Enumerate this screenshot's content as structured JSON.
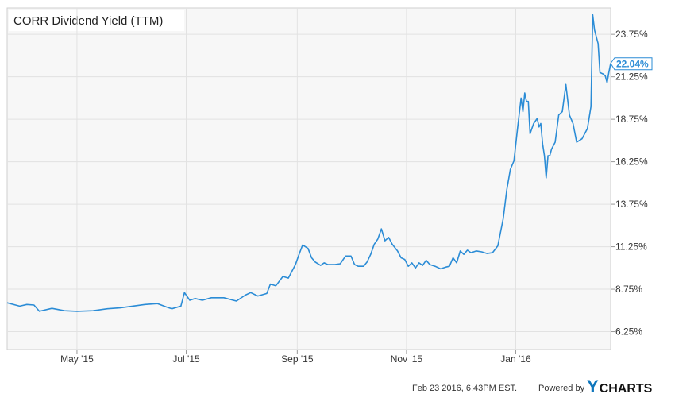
{
  "colors": {
    "line": "#2b8cd6",
    "plot_bg": "#f7f7f7",
    "grid": "#e2e2e2",
    "brand_y": "#0e76bc",
    "brand_text": "#111111"
  },
  "footer": {
    "timestamp": "Feb 23 2016, 6:43PM EST.",
    "powered_by": "Powered by",
    "brand_y": "Y",
    "brand_rest": "CHARTS"
  },
  "chart_data": {
    "type": "line",
    "title": "CORR Dividend Yield (TTM)",
    "xlabel": "",
    "ylabel": "",
    "x_start": "2015-03-23",
    "x_end": "2016-02-23",
    "ylim": [
      5.2,
      25.3
    ],
    "y_ticks": [
      6.25,
      8.75,
      11.25,
      13.75,
      16.25,
      18.75,
      21.25,
      23.75
    ],
    "y_tick_labels": [
      "6.25%",
      "8.75%",
      "11.25%",
      "13.75%",
      "16.25%",
      "18.75%",
      "21.25%",
      "23.75%"
    ],
    "x_ticks": [
      {
        "label": "May '15",
        "date": "2015-05-01"
      },
      {
        "label": "Jul '15",
        "date": "2015-07-01"
      },
      {
        "label": "Sep '15",
        "date": "2015-09-01"
      },
      {
        "label": "Nov '15",
        "date": "2015-11-01"
      },
      {
        "label": "Jan '16",
        "date": "2016-01-01"
      }
    ],
    "grid": true,
    "last_value_label": "22.04%",
    "series": [
      {
        "points": [
          [
            "2015-03-23",
            7.95
          ],
          [
            "2015-03-30",
            7.75
          ],
          [
            "2015-04-03",
            7.85
          ],
          [
            "2015-04-07",
            7.82
          ],
          [
            "2015-04-10",
            7.45
          ],
          [
            "2015-04-17",
            7.62
          ],
          [
            "2015-04-24",
            7.48
          ],
          [
            "2015-05-01",
            7.45
          ],
          [
            "2015-05-10",
            7.48
          ],
          [
            "2015-05-18",
            7.6
          ],
          [
            "2015-05-25",
            7.65
          ],
          [
            "2015-06-01",
            7.75
          ],
          [
            "2015-06-08",
            7.85
          ],
          [
            "2015-06-15",
            7.9
          ],
          [
            "2015-06-20",
            7.7
          ],
          [
            "2015-06-23",
            7.6
          ],
          [
            "2015-06-28",
            7.75
          ],
          [
            "2015-06-30",
            8.55
          ],
          [
            "2015-07-03",
            8.1
          ],
          [
            "2015-07-06",
            8.2
          ],
          [
            "2015-07-10",
            8.1
          ],
          [
            "2015-07-15",
            8.25
          ],
          [
            "2015-07-22",
            8.25
          ],
          [
            "2015-07-29",
            8.05
          ],
          [
            "2015-08-03",
            8.4
          ],
          [
            "2015-08-06",
            8.55
          ],
          [
            "2015-08-10",
            8.35
          ],
          [
            "2015-08-15",
            8.5
          ],
          [
            "2015-08-17",
            9.05
          ],
          [
            "2015-08-20",
            8.95
          ],
          [
            "2015-08-24",
            9.5
          ],
          [
            "2015-08-27",
            9.4
          ],
          [
            "2015-08-31",
            10.2
          ],
          [
            "2015-09-02",
            10.8
          ],
          [
            "2015-09-04",
            11.35
          ],
          [
            "2015-09-07",
            11.15
          ],
          [
            "2015-09-09",
            10.6
          ],
          [
            "2015-09-11",
            10.35
          ],
          [
            "2015-09-14",
            10.15
          ],
          [
            "2015-09-16",
            10.3
          ],
          [
            "2015-09-18",
            10.2
          ],
          [
            "2015-09-22",
            10.2
          ],
          [
            "2015-09-25",
            10.25
          ],
          [
            "2015-09-28",
            10.7
          ],
          [
            "2015-10-01",
            10.7
          ],
          [
            "2015-10-03",
            10.2
          ],
          [
            "2015-10-05",
            10.1
          ],
          [
            "2015-10-08",
            10.1
          ],
          [
            "2015-10-10",
            10.35
          ],
          [
            "2015-10-12",
            10.8
          ],
          [
            "2015-10-14",
            11.4
          ],
          [
            "2015-10-16",
            11.7
          ],
          [
            "2015-10-18",
            12.3
          ],
          [
            "2015-10-20",
            11.6
          ],
          [
            "2015-10-22",
            11.8
          ],
          [
            "2015-10-24",
            11.4
          ],
          [
            "2015-10-27",
            11.0
          ],
          [
            "2015-10-29",
            10.6
          ],
          [
            "2015-10-31",
            10.5
          ],
          [
            "2015-11-02",
            10.1
          ],
          [
            "2015-11-04",
            10.3
          ],
          [
            "2015-11-06",
            10.0
          ],
          [
            "2015-11-08",
            10.3
          ],
          [
            "2015-11-10",
            10.15
          ],
          [
            "2015-11-12",
            10.45
          ],
          [
            "2015-11-14",
            10.2
          ],
          [
            "2015-11-17",
            10.1
          ],
          [
            "2015-11-20",
            9.95
          ],
          [
            "2015-11-23",
            10.05
          ],
          [
            "2015-11-25",
            10.1
          ],
          [
            "2015-11-27",
            10.6
          ],
          [
            "2015-11-29",
            10.3
          ],
          [
            "2015-12-01",
            11.0
          ],
          [
            "2015-12-03",
            10.8
          ],
          [
            "2015-12-05",
            11.05
          ],
          [
            "2015-12-07",
            10.9
          ],
          [
            "2015-12-10",
            11.0
          ],
          [
            "2015-12-13",
            10.95
          ],
          [
            "2015-12-16",
            10.85
          ],
          [
            "2015-12-19",
            10.9
          ],
          [
            "2015-12-22",
            11.3
          ],
          [
            "2015-12-25",
            12.9
          ],
          [
            "2015-12-27",
            14.6
          ],
          [
            "2015-12-29",
            15.8
          ],
          [
            "2015-12-31",
            16.3
          ],
          [
            "2016-01-02",
            18.2
          ],
          [
            "2016-01-04",
            20.0
          ],
          [
            "2016-01-05",
            19.2
          ],
          [
            "2016-01-06",
            20.3
          ],
          [
            "2016-01-07",
            19.8
          ],
          [
            "2016-01-08",
            19.8
          ],
          [
            "2016-01-09",
            17.9
          ],
          [
            "2016-01-11",
            18.5
          ],
          [
            "2016-01-13",
            18.8
          ],
          [
            "2016-01-14",
            18.3
          ],
          [
            "2016-01-15",
            18.5
          ],
          [
            "2016-01-16",
            17.3
          ],
          [
            "2016-01-17",
            16.6
          ],
          [
            "2016-01-18",
            15.3
          ],
          [
            "2016-01-19",
            16.6
          ],
          [
            "2016-01-20",
            16.6
          ],
          [
            "2016-01-21",
            17.0
          ],
          [
            "2016-01-23",
            17.4
          ],
          [
            "2016-01-25",
            19.0
          ],
          [
            "2016-01-27",
            19.2
          ],
          [
            "2016-01-29",
            20.8
          ],
          [
            "2016-01-31",
            19.0
          ],
          [
            "2016-02-02",
            18.5
          ],
          [
            "2016-02-04",
            17.4
          ],
          [
            "2016-02-07",
            17.6
          ],
          [
            "2016-02-10",
            18.2
          ],
          [
            "2016-02-12",
            19.5
          ],
          [
            "2016-02-13",
            24.9
          ],
          [
            "2016-02-14",
            24.0
          ],
          [
            "2016-02-16",
            23.2
          ],
          [
            "2016-02-17",
            21.5
          ],
          [
            "2016-02-19",
            21.4
          ],
          [
            "2016-02-20",
            21.3
          ],
          [
            "2016-02-21",
            20.9
          ],
          [
            "2016-02-22",
            21.5
          ],
          [
            "2016-02-23",
            22.04
          ]
        ]
      }
    ]
  }
}
